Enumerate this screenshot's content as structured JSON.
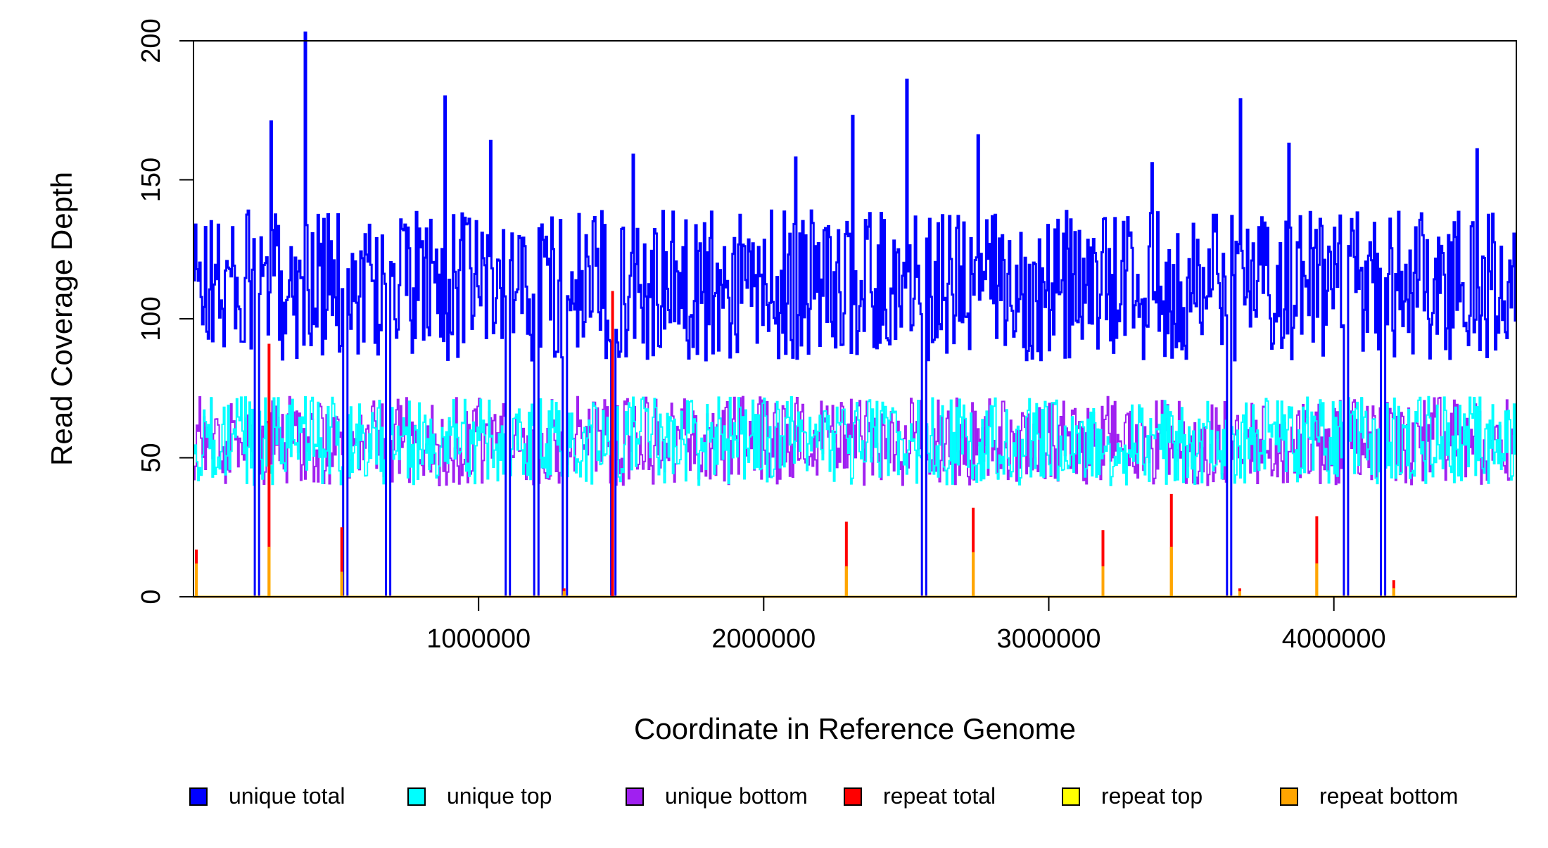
{
  "chart_data": {
    "type": "line",
    "title": "",
    "xlabel": "Coordinate in Reference Genome",
    "ylabel": "Read Coverage Depth",
    "xlim": [
      0,
      4640000
    ],
    "ylim": [
      0,
      200
    ],
    "x_ticks": [
      {
        "value": 1000000,
        "label": "1000000"
      },
      {
        "value": 2000000,
        "label": "2000000"
      },
      {
        "value": 3000000,
        "label": "3000000"
      },
      {
        "value": 4000000,
        "label": "4000000"
      }
    ],
    "y_ticks": [
      {
        "value": 0,
        "label": "0"
      },
      {
        "value": 50,
        "label": "50"
      },
      {
        "value": 100,
        "label": "100"
      },
      {
        "value": 150,
        "label": "150"
      },
      {
        "value": 200,
        "label": "200"
      }
    ],
    "grid": false,
    "legend_position": "bottom",
    "bin_size": 5000,
    "series": [
      {
        "name": "unique total",
        "color": "#0000ff",
        "pattern": "noise",
        "mean": 112,
        "amplitude": 27,
        "dropouts": true
      },
      {
        "name": "unique top",
        "color": "#00ffff",
        "pattern": "noise",
        "mean": 56,
        "amplitude": 16,
        "dropouts": true
      },
      {
        "name": "unique bottom",
        "color": "#a020f0",
        "pattern": "noise",
        "mean": 56,
        "amplitude": 16,
        "dropouts": true
      },
      {
        "name": "repeat total",
        "color": "#ff0000",
        "pattern": "spikes"
      },
      {
        "name": "repeat top",
        "color": "#ffff00",
        "pattern": "spikes"
      },
      {
        "name": "repeat bottom",
        "color": "#ffa500",
        "pattern": "spikes"
      }
    ],
    "unique_total_peaks": [
      {
        "x": 40000,
        "y": 133
      },
      {
        "x": 270000,
        "y": 171
      },
      {
        "x": 390000,
        "y": 203
      },
      {
        "x": 880000,
        "y": 180
      },
      {
        "x": 1040000,
        "y": 164
      },
      {
        "x": 1540000,
        "y": 159
      },
      {
        "x": 2110000,
        "y": 158
      },
      {
        "x": 2310000,
        "y": 173
      },
      {
        "x": 2500000,
        "y": 186
      },
      {
        "x": 2750000,
        "y": 166
      },
      {
        "x": 3360000,
        "y": 156
      },
      {
        "x": 3670000,
        "y": 179
      },
      {
        "x": 3840000,
        "y": 163
      },
      {
        "x": 4500000,
        "y": 161
      }
    ],
    "dropouts": [
      {
        "x": 220000
      },
      {
        "x": 530000
      },
      {
        "x": 680000
      },
      {
        "x": 1100000
      },
      {
        "x": 1200000
      },
      {
        "x": 1300000
      },
      {
        "x": 1470000
      },
      {
        "x": 2560000
      },
      {
        "x": 3630000
      },
      {
        "x": 4040000
      },
      {
        "x": 4170000
      }
    ],
    "repeat_spikes": [
      {
        "x": 10000,
        "total": 17,
        "top": 11,
        "bottom": 12
      },
      {
        "x": 265000,
        "total": 91,
        "top": 17,
        "bottom": 18
      },
      {
        "x": 520000,
        "total": 25,
        "top": 8,
        "bottom": 9
      },
      {
        "x": 1300000,
        "total": 3,
        "top": 1,
        "bottom": 2
      },
      {
        "x": 1470000,
        "total": 110,
        "top": 0,
        "bottom": 0
      },
      {
        "x": 2290000,
        "total": 27,
        "top": 10,
        "bottom": 11
      },
      {
        "x": 2735000,
        "total": 32,
        "top": 16,
        "bottom": 16
      },
      {
        "x": 3190000,
        "total": 24,
        "top": 11,
        "bottom": 11
      },
      {
        "x": 3430000,
        "total": 37,
        "top": 17,
        "bottom": 18
      },
      {
        "x": 3670000,
        "total": 3,
        "top": 1,
        "bottom": 2
      },
      {
        "x": 3940000,
        "total": 29,
        "top": 12,
        "bottom": 12
      },
      {
        "x": 4210000,
        "total": 6,
        "top": 3,
        "bottom": 3
      }
    ]
  }
}
